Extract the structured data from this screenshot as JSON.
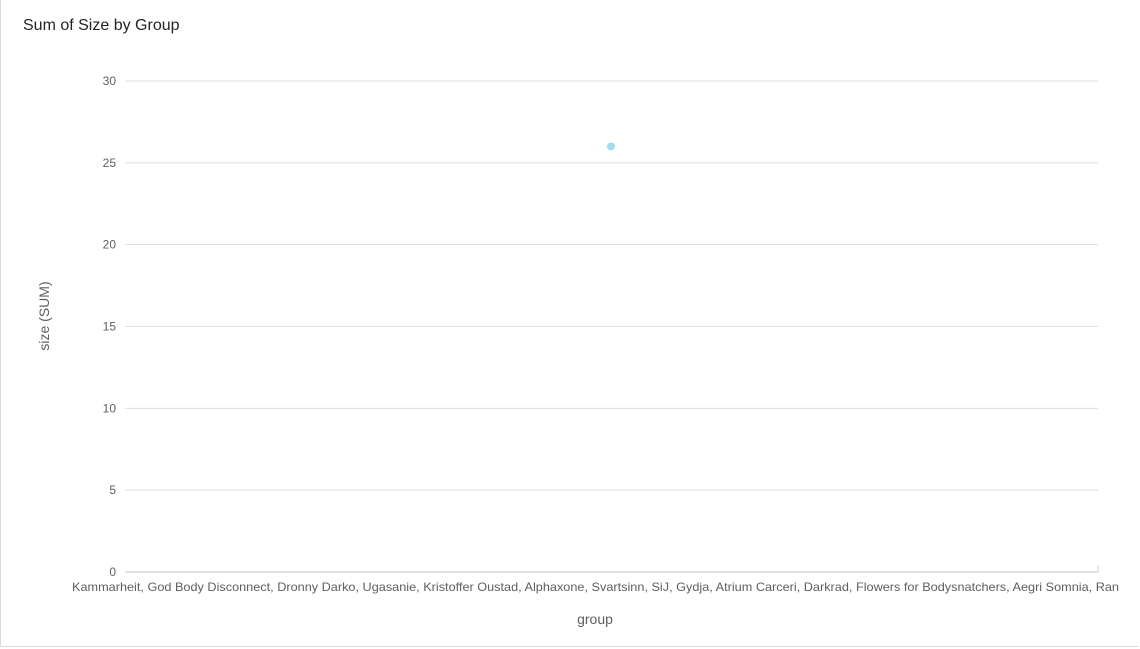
{
  "chart_data": {
    "type": "scatter",
    "title": "Sum of Size by Group",
    "xlabel": "group",
    "ylabel": "size (SUM)",
    "ylim": [
      0,
      30
    ],
    "yticks": [
      0,
      5,
      10,
      15,
      20,
      25,
      30
    ],
    "grid": true,
    "categories": [
      "Kammarheit, God Body Disconnect, Dronny Darko, Ugasanie, Kristoffer Oustad, Alphaxone, Svartsinn, SiJ, Gydja, Atrium Carceri, Darkrad, Flowers for Bodysnatchers, Aegri Somnia, Ran"
    ],
    "values": [
      26
    ],
    "color": "#a0dcec"
  }
}
